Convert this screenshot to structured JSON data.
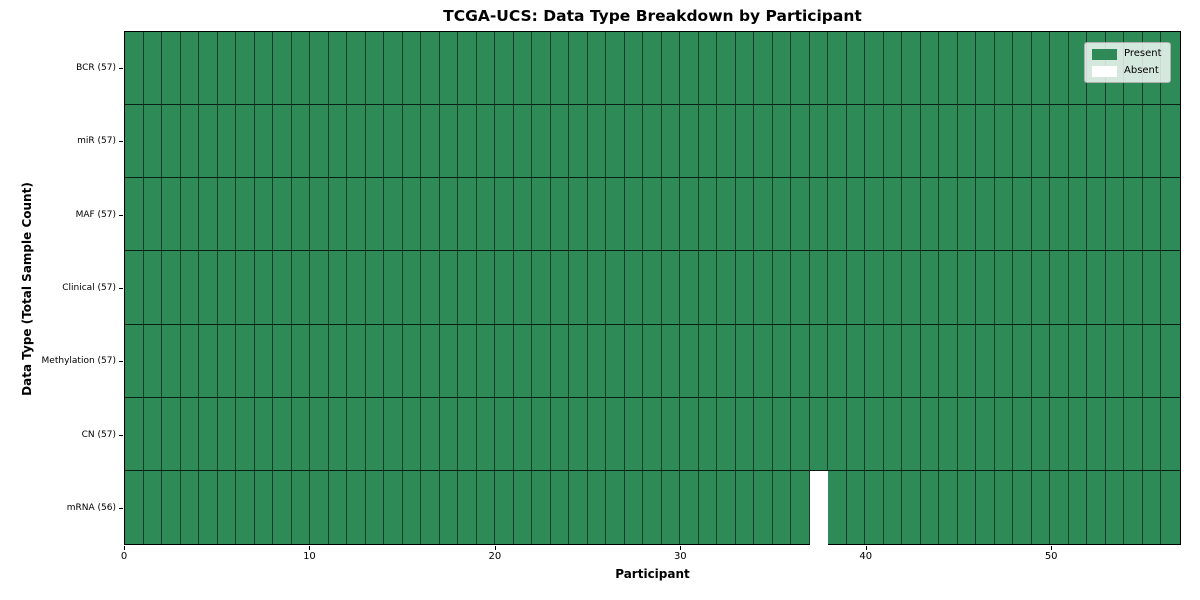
{
  "chart_data": {
    "type": "heatmap",
    "title": "TCGA-UCS: Data Type Breakdown by Participant",
    "xlabel": "Participant",
    "ylabel": "Data Type (Total Sample Count)",
    "n_participants": 57,
    "xlim": [
      0,
      57
    ],
    "x_ticks": [
      0,
      10,
      20,
      30,
      40,
      50
    ],
    "rows": [
      {
        "label": "BCR (57)",
        "total": 57,
        "absent_participants": []
      },
      {
        "label": "miR (57)",
        "total": 57,
        "absent_participants": []
      },
      {
        "label": "MAF (57)",
        "total": 57,
        "absent_participants": []
      },
      {
        "label": "Clinical (57)",
        "total": 57,
        "absent_participants": []
      },
      {
        "label": "Methylation (57)",
        "total": 57,
        "absent_participants": []
      },
      {
        "label": "CN (57)",
        "total": 57,
        "absent_participants": []
      },
      {
        "label": "mRNA (56)",
        "total": 56,
        "absent_participants": [
          37
        ]
      }
    ],
    "legend": [
      {
        "label": "Present",
        "color": "#2E8B57"
      },
      {
        "label": "Absent",
        "color": "#FFFFFF"
      }
    ],
    "colors": {
      "present": "#2E8B57",
      "absent": "#FFFFFF",
      "grid_line": "rgba(0,0,0,0.6)",
      "frame": "#000000"
    },
    "legend_position": "upper right",
    "grid": true
  }
}
